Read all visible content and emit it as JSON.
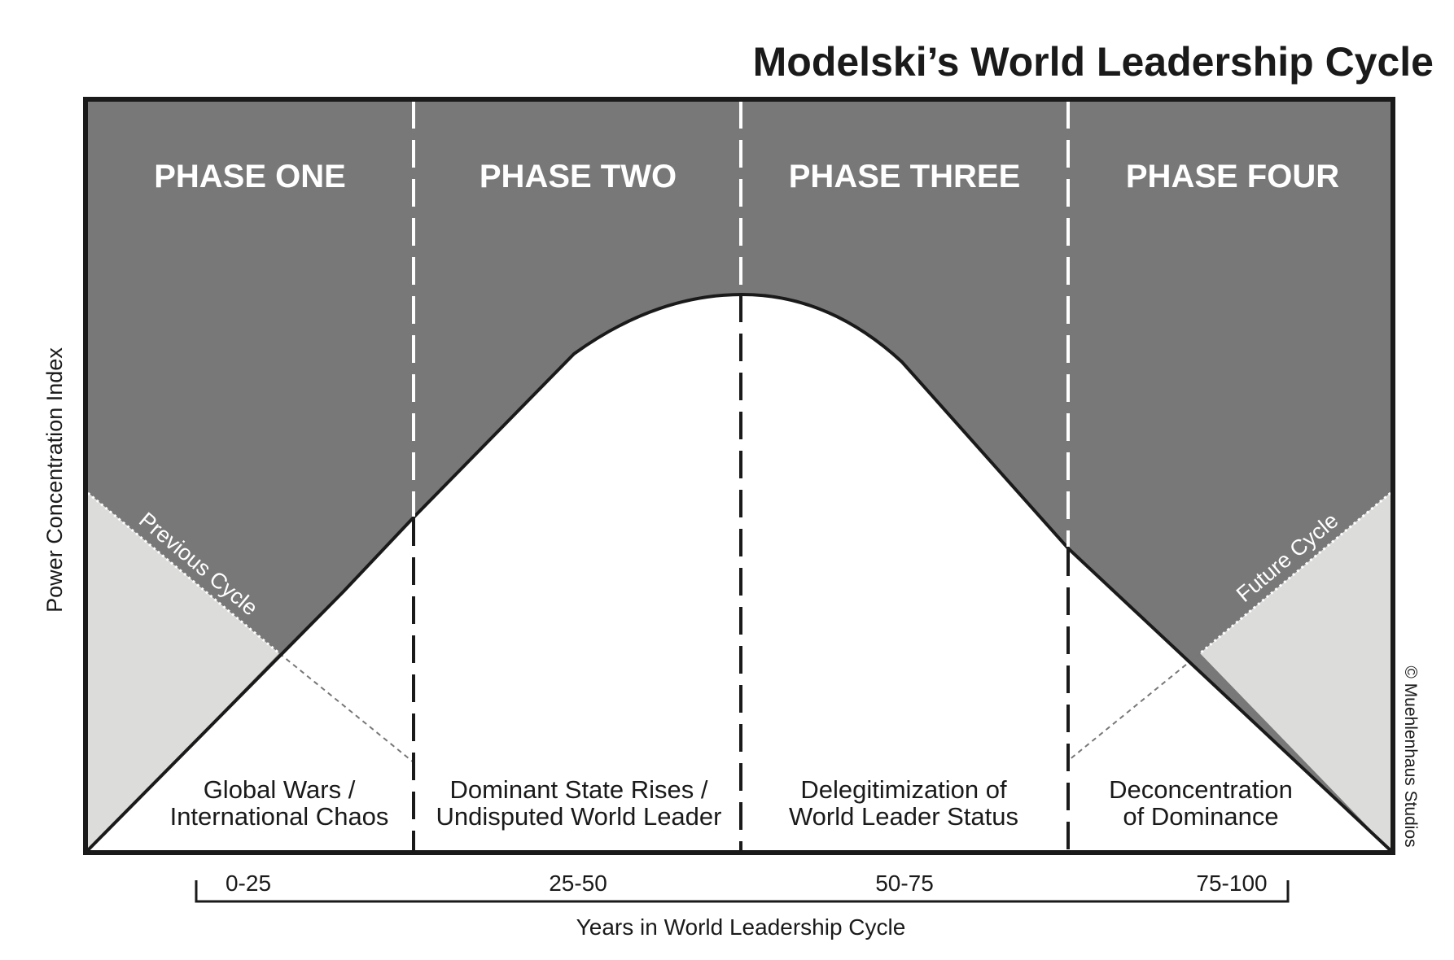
{
  "title": "Modelski’s World Leadership Cycle",
  "axes": {
    "y_label": "Power Concentration Index",
    "x_label": "Years in World Leadership Cycle"
  },
  "phases": [
    {
      "name": "PHASE ONE",
      "description": [
        "Global Wars /",
        "International Chaos"
      ],
      "years": "0-25"
    },
    {
      "name": "PHASE TWO",
      "description": [
        "Dominant State Rises /",
        "Undisputed World Leader"
      ],
      "years": "25-50"
    },
    {
      "name": "PHASE THREE",
      "description": [
        "Delegitimization of",
        "World Leader Status"
      ],
      "years": "50-75"
    },
    {
      "name": "PHASE FOUR",
      "description": [
        "Deconcentration",
        "of Dominance"
      ],
      "years": "75-100"
    }
  ],
  "curve_labels": {
    "previous": "Previous Cycle",
    "future": "Future Cycle"
  },
  "credit": "© Muehlenhaus Studios",
  "colors": {
    "dark_fill": "#787878",
    "light_fill": "#dcdcda",
    "line": "#1a1a1a",
    "background": "#ffffff"
  }
}
